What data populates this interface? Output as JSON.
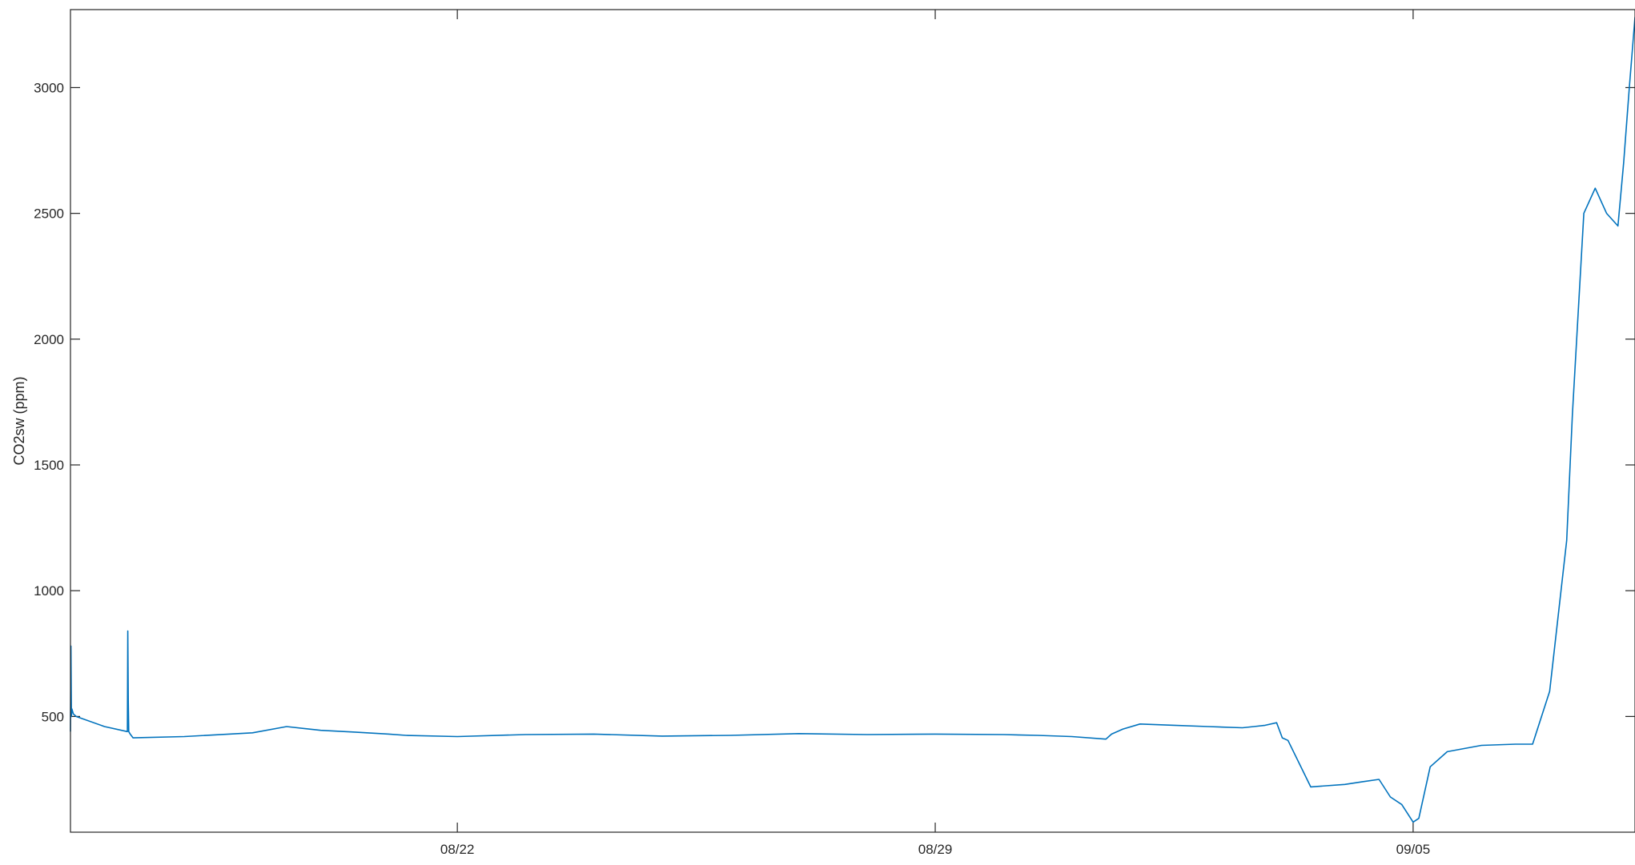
{
  "chart_data": {
    "type": "line",
    "title": "",
    "xlabel": "",
    "ylabel": "CO2sw (ppm)",
    "x_axis": {
      "kind": "date",
      "range": [
        "08/16 08:00",
        "09/08 06:00"
      ],
      "ticks": [
        {
          "date": "08/22",
          "label": "08/22"
        },
        {
          "date": "08/29",
          "label": "08/29"
        },
        {
          "date": "09/05",
          "label": "09/05"
        }
      ]
    },
    "y_axis": {
      "range": [
        40,
        3310
      ],
      "ticks": [
        500,
        1000,
        1500,
        2000,
        2500,
        3000
      ],
      "tick_labels": [
        "500",
        "1000",
        "1500",
        "2000",
        "2500",
        "3000"
      ]
    },
    "grid": false,
    "series": [
      {
        "color": "#0072BD",
        "x": [
          "08/16 08:00",
          "08/16 08:10",
          "08/16 08:20",
          "08/16 08:30",
          "08/16 08:45",
          "08/16 09:00",
          "08/16 10:00",
          "08/16 20:00",
          "08/17 04:00",
          "08/17 04:10",
          "08/17 04:20",
          "08/17 04:30",
          "08/17 05:00",
          "08/17 06:00",
          "08/18 00:00",
          "08/19 00:00",
          "08/19 12:00",
          "08/20 00:00",
          "08/20 12:00",
          "08/21 00:00",
          "08/21 06:00",
          "08/22 00:00",
          "08/23 00:00",
          "08/24 00:00",
          "08/25 00:00",
          "08/26 00:00",
          "08/27 00:00",
          "08/28 00:00",
          "08/29 00:00",
          "08/30 00:00",
          "08/30 12:00",
          "08/31 00:00",
          "08/31 12:00",
          "08/31 14:00",
          "08/31 18:00",
          "09/01 00:00",
          "09/01 12:00",
          "09/02 00:00",
          "09/02 12:00",
          "09/02 16:00",
          "09/02 20:00",
          "09/03 00:00",
          "09/03 02:00",
          "09/03 04:00",
          "09/03 12:00",
          "09/04 00:00",
          "09/04 06:00",
          "09/04 12:00",
          "09/04 16:00",
          "09/04 20:00",
          "09/05 00:00",
          "09/05 02:00",
          "09/05 06:00",
          "09/05 12:00",
          "09/06 00:00",
          "09/06 12:00",
          "09/06 18:00",
          "09/07 00:00",
          "09/07 04:00",
          "09/07 06:00",
          "09/07 08:00",
          "09/07 12:00",
          "09/07 16:00",
          "09/07 20:00",
          "09/08 00:00",
          "09/08 02:00",
          "09/08 04:00",
          "09/08 06:00"
        ],
        "y": [
          440,
          780,
          500,
          530,
          520,
          510,
          500,
          460,
          440,
          840,
          560,
          440,
          430,
          415,
          420,
          435,
          460,
          445,
          438,
          430,
          425,
          420,
          428,
          430,
          422,
          425,
          432,
          428,
          430,
          428,
          425,
          420,
          410,
          430,
          450,
          470,
          465,
          460,
          455,
          460,
          465,
          475,
          415,
          405,
          220,
          230,
          240,
          250,
          180,
          150,
          80,
          95,
          300,
          360,
          385,
          390,
          390,
          600,
          1000,
          1200,
          1700,
          2500,
          2600,
          2500,
          2450,
          2700,
          3000,
          3280
        ]
      }
    ]
  }
}
